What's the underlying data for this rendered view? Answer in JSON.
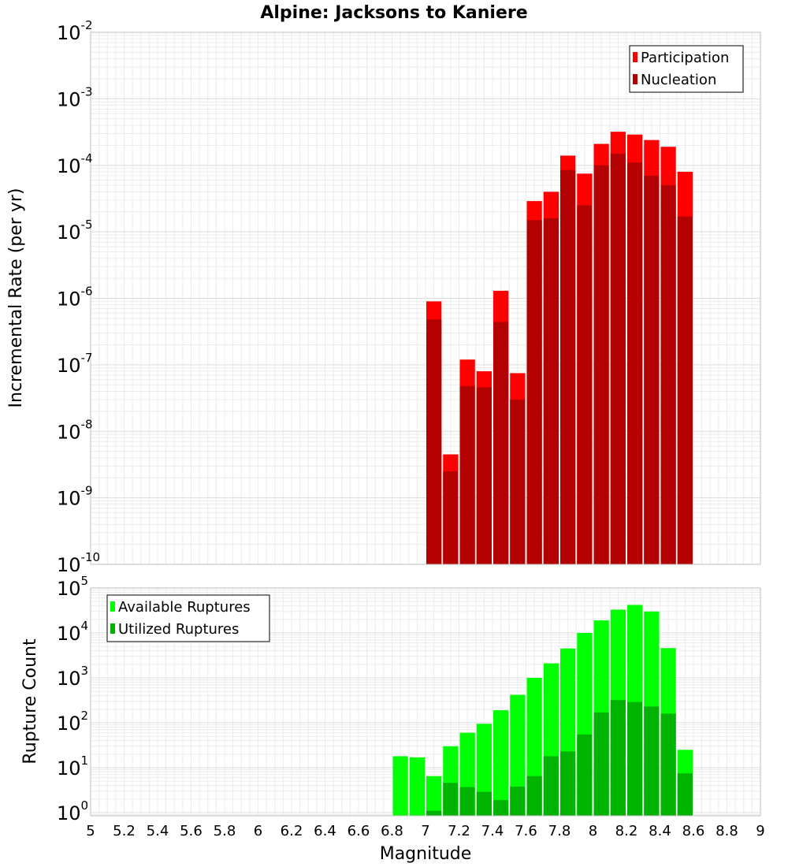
{
  "chart_data": [
    {
      "type": "bar",
      "title": "Alpine: Jacksons to Kaniere",
      "xlabel": "",
      "ylabel": "Incremental Rate (per yr)",
      "yscale": "log",
      "ylim": [
        1e-10,
        0.01
      ],
      "xlim": [
        5,
        9
      ],
      "ytick_labels": [
        {
          "base": "10",
          "exp": "-10"
        },
        {
          "base": "10",
          "exp": "-9"
        },
        {
          "base": "10",
          "exp": "-8"
        },
        {
          "base": "10",
          "exp": "-7"
        },
        {
          "base": "10",
          "exp": "-6"
        },
        {
          "base": "10",
          "exp": "-5"
        },
        {
          "base": "10",
          "exp": "-4"
        },
        {
          "base": "10",
          "exp": "-3"
        },
        {
          "base": "10",
          "exp": "-2"
        }
      ],
      "legend_position": "top-right",
      "x": [
        7.05,
        7.15,
        7.25,
        7.35,
        7.45,
        7.55,
        7.65,
        7.75,
        7.85,
        7.95,
        8.05,
        8.15,
        8.25,
        8.35,
        8.45,
        8.55
      ],
      "bar_width": 0.1,
      "series": [
        {
          "name": "Participation",
          "color": "#ff0000",
          "values": [
            9e-07,
            4.5e-09,
            1.2e-07,
            8e-08,
            1.3e-06,
            7.5e-08,
            2.9e-05,
            4e-05,
            0.00014,
            7.5e-05,
            0.00021,
            0.00032,
            0.00029,
            0.00024,
            0.00019,
            8e-05
          ]
        },
        {
          "name": "Nucleation",
          "color": "#b30000",
          "values": [
            4.8e-07,
            2.5e-09,
            4.8e-08,
            4.6e-08,
            4.4e-07,
            3e-08,
            1.5e-05,
            1.6e-05,
            8.5e-05,
            2.5e-05,
            0.0001,
            0.00015,
            0.00011,
            7e-05,
            5e-05,
            1.7e-05
          ]
        }
      ]
    },
    {
      "type": "bar",
      "title": "",
      "xlabel": "Magnitude",
      "ylabel": "Rupture Count",
      "yscale": "log",
      "ylim": [
        0.85,
        100000.0
      ],
      "xlim": [
        5,
        9
      ],
      "x_ticks": [
        "5",
        "5.2",
        "5.4",
        "5.6",
        "5.8",
        "6",
        "6.2",
        "6.4",
        "6.6",
        "6.8",
        "7",
        "7.2",
        "7.4",
        "7.6",
        "7.8",
        "8",
        "8.2",
        "8.4",
        "8.6",
        "8.8",
        "9"
      ],
      "ytick_labels": [
        {
          "base": "10",
          "exp": "0"
        },
        {
          "base": "10",
          "exp": "1"
        },
        {
          "base": "10",
          "exp": "2"
        },
        {
          "base": "10",
          "exp": "3"
        },
        {
          "base": "10",
          "exp": "4"
        },
        {
          "base": "10",
          "exp": "5"
        }
      ],
      "legend_position": "top-left",
      "x": [
        6.85,
        6.95,
        7.05,
        7.15,
        7.25,
        7.35,
        7.45,
        7.55,
        7.65,
        7.75,
        7.85,
        7.95,
        8.05,
        8.15,
        8.25,
        8.35,
        8.45,
        8.55
      ],
      "bar_width": 0.1,
      "series": [
        {
          "name": "Available Ruptures",
          "color": "#00ff00",
          "values": [
            18,
            17,
            6.5,
            30,
            60,
            95,
            190,
            420,
            1000,
            2100,
            4500,
            10000,
            19000,
            33000,
            42000,
            30000,
            4600,
            25
          ]
        },
        {
          "name": "Utilized Ruptures",
          "color": "#00b300",
          "values": [
            null,
            null,
            1.1,
            4.6,
            3.7,
            2.9,
            1.9,
            3.8,
            6.5,
            18,
            23,
            55,
            170,
            320,
            290,
            230,
            160,
            7.5
          ]
        }
      ]
    }
  ]
}
